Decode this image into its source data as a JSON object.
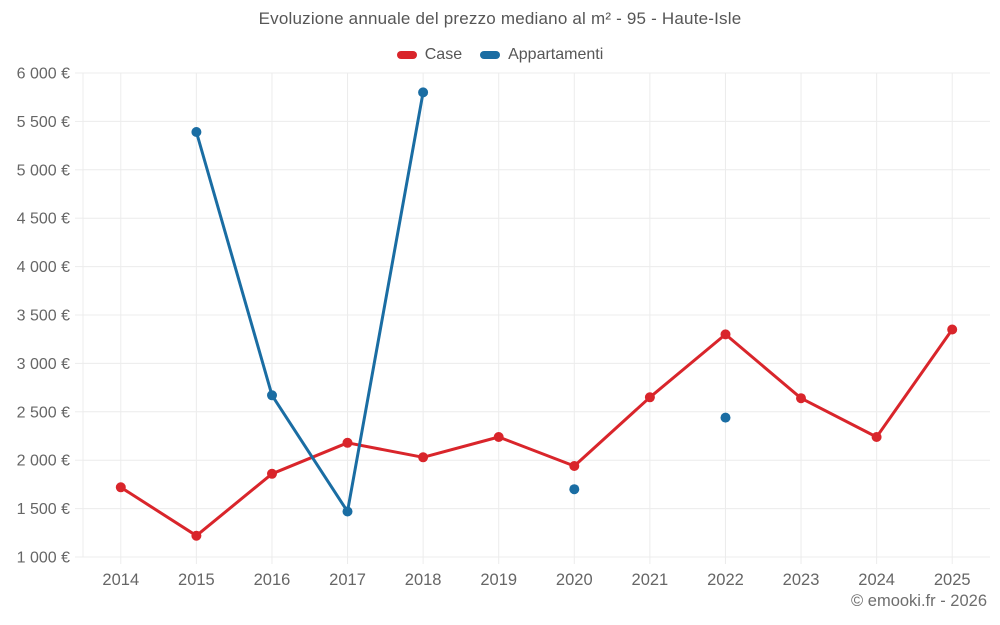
{
  "chart_data": {
    "type": "line",
    "title": "Evoluzione annuale del prezzo mediano al m² - 95 - Haute-Isle",
    "categories": [
      "2014",
      "2015",
      "2016",
      "2017",
      "2018",
      "2019",
      "2020",
      "2021",
      "2022",
      "2023",
      "2024",
      "2025"
    ],
    "series": [
      {
        "name": "Case",
        "color": "#d9252b",
        "values": [
          1720,
          1220,
          1860,
          2180,
          2030,
          2240,
          1940,
          2650,
          3300,
          2640,
          2240,
          3350
        ]
      },
      {
        "name": "Appartamenti",
        "color": "#1a6da3",
        "values": [
          null,
          5390,
          2670,
          1470,
          5800,
          null,
          1700,
          null,
          2440,
          null,
          null,
          null
        ]
      }
    ],
    "ylim": [
      1000,
      6000
    ],
    "ytick_step": 500,
    "ytick_labels": [
      "1 000 €",
      "1 500 €",
      "2 000 €",
      "2 500 €",
      "3 000 €",
      "3 500 €",
      "4 000 €",
      "4 500 €",
      "5 000 €",
      "5 500 €",
      "6 000 €"
    ],
    "xlabel": "",
    "ylabel": "",
    "grid": true,
    "legend_position": "top",
    "currency_suffix": "€"
  },
  "footer": {
    "copyright": "© emooki.fr - 2026"
  },
  "theme": {
    "grid_color": "#ececec",
    "axis_text_color": "#666666",
    "title_color": "#565656",
    "footer_color": "#6e6e6e",
    "background": "#ffffff"
  }
}
